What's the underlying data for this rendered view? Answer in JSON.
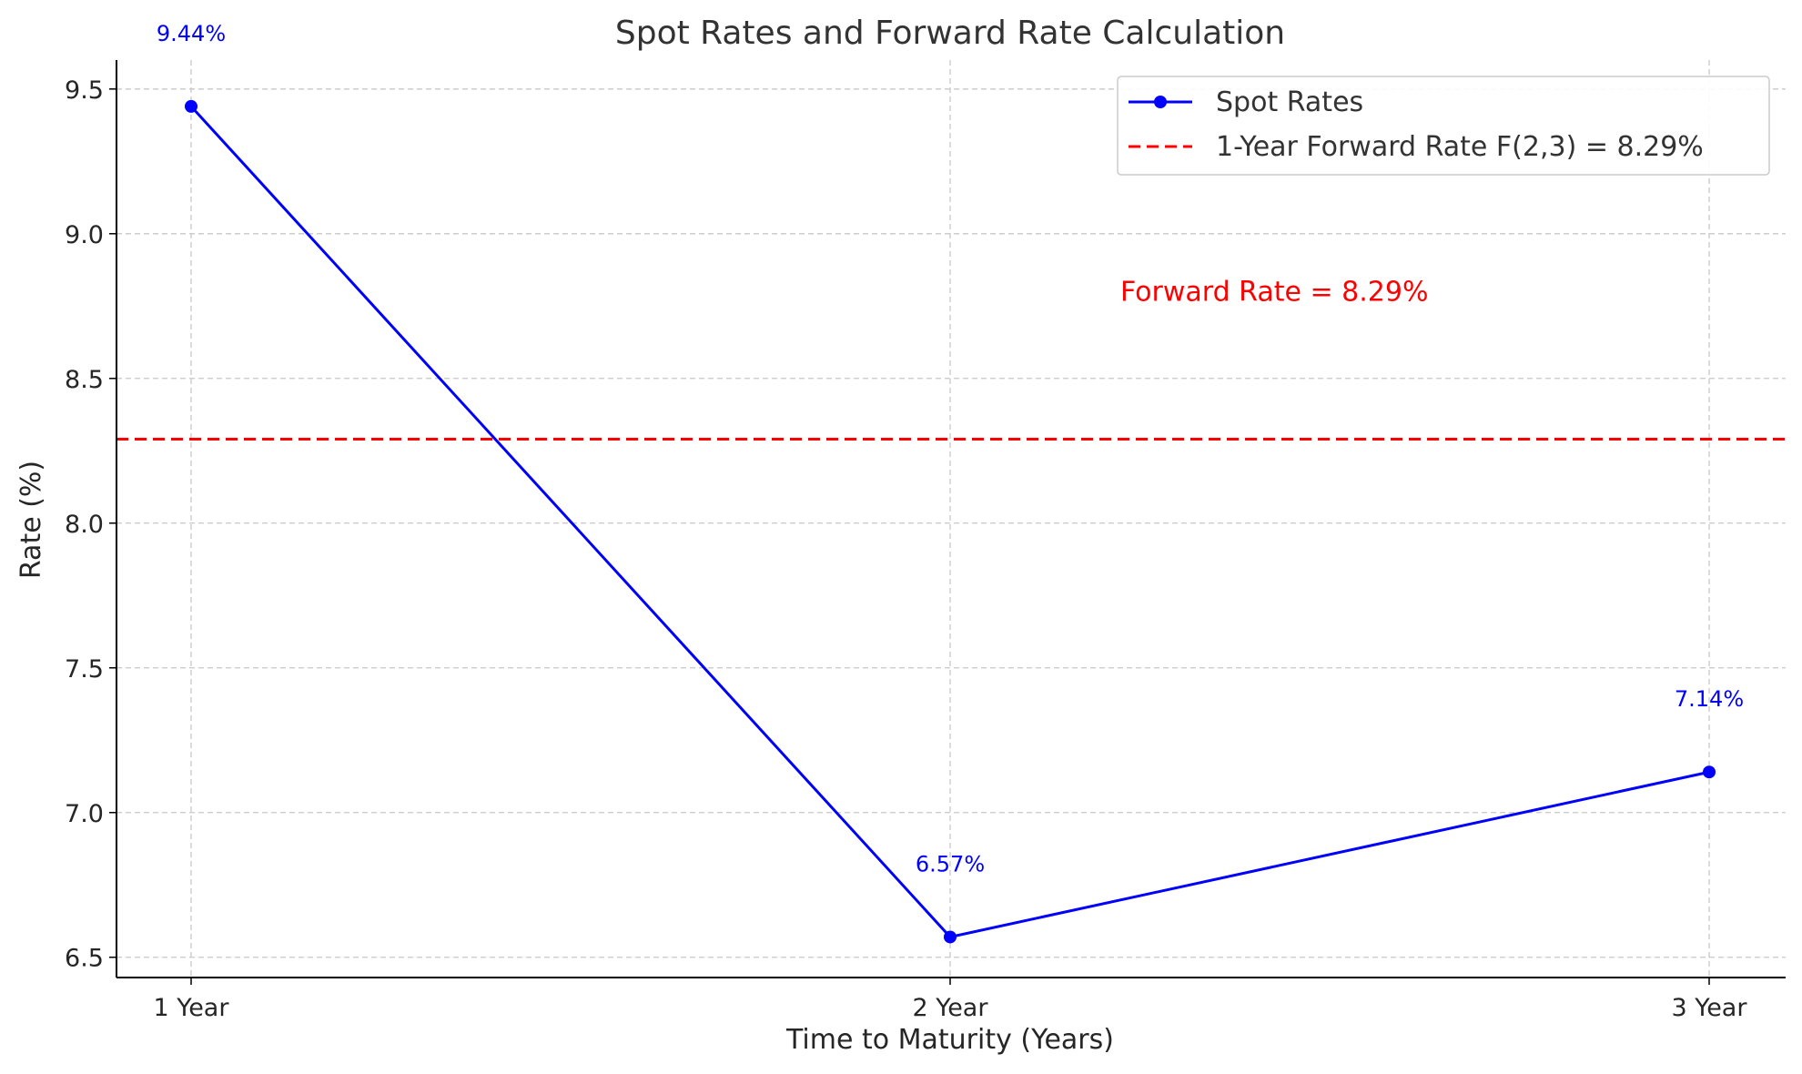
{
  "chart_data": {
    "type": "line",
    "title": "Spot Rates and Forward Rate Calculation",
    "xlabel": "Time to Maturity (Years)",
    "ylabel": "Rate (%)",
    "categories": [
      "1 Year",
      "2 Year",
      "3 Year"
    ],
    "ylim": [
      6.43,
      9.6
    ],
    "yticks": [
      6.5,
      7.0,
      7.5,
      8.0,
      8.5,
      9.0,
      9.5
    ],
    "ytick_labels": [
      "6.5",
      "7.0",
      "7.5",
      "8.0",
      "8.5",
      "9.0",
      "9.5"
    ],
    "grid": true,
    "series": [
      {
        "name": "Spot Rates",
        "values": [
          9.44,
          6.57,
          7.14
        ],
        "data_labels": [
          "9.44%",
          "6.57%",
          "7.14%"
        ],
        "color": "#0000ff",
        "style": "solid",
        "marker": "circle"
      }
    ],
    "reference_line": {
      "name": "1-Year Forward Rate F(2,3) = 8.29%",
      "value": 8.29,
      "color": "#ff0000",
      "style": "dashed"
    },
    "annotation": {
      "text": "Forward Rate = 8.29%",
      "x": 2.5,
      "y": 8.8,
      "color": "#ff0000"
    },
    "legend": {
      "position": "top-right",
      "entries": [
        "Spot Rates",
        "1-Year Forward Rate F(2,3) = 8.29%"
      ]
    }
  }
}
